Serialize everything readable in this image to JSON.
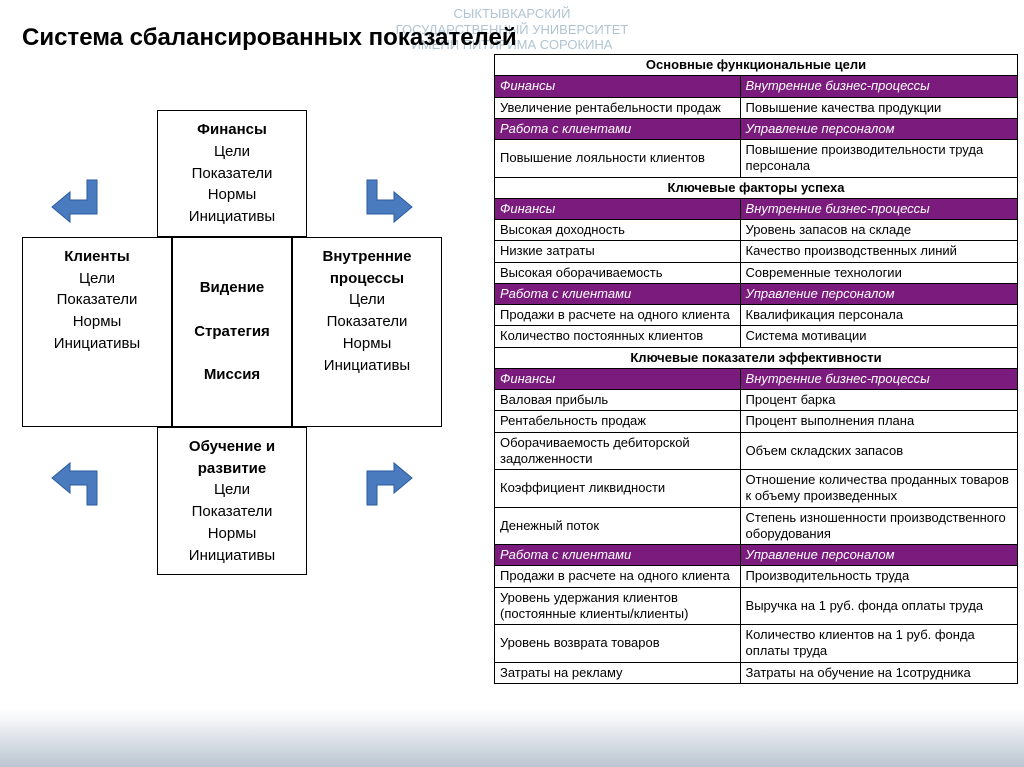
{
  "colors": {
    "purple": "#7a1b7d",
    "arrow": "#4a7bbf",
    "text": "#000000",
    "white": "#ffffff",
    "watermark": "#b0c4d4"
  },
  "watermark": {
    "line1": "СЫКТЫВКАРСКИЙ",
    "line2": "ГОСУДАРСТВЕННЫЙ УНИВЕРСИТЕТ",
    "line3": "ИМЕНИ ПИТИРИМА СОРОКИНА"
  },
  "title": "Система сбалансированных показателей",
  "diagram": {
    "top": {
      "title": "Финансы",
      "lines": [
        "Цели",
        "Показатели",
        "Нормы",
        "Инициативы"
      ]
    },
    "left": {
      "title": "Клиенты",
      "lines": [
        "Цели",
        "Показатели",
        "Нормы",
        "Инициативы"
      ]
    },
    "center": {
      "lines": [
        "Видение",
        "Стратегия",
        "Миссия"
      ]
    },
    "right": {
      "title": "Внутренние процессы",
      "lines": [
        "Цели",
        "Показатели",
        "Нормы",
        "Инициативы"
      ]
    },
    "bottom": {
      "title": "Обучение и развитие",
      "lines": [
        "Цели",
        "Показатели",
        "Нормы",
        "Инициативы"
      ]
    }
  },
  "table": {
    "sections": [
      {
        "header": "Основные функциональные цели",
        "groups": [
          {
            "subL": "Финансы",
            "subR": "Внутренние бизнес-процессы",
            "rows": [
              [
                "Увеличение рентабельности продаж",
                "Повышение качества продукции"
              ]
            ]
          },
          {
            "subL": "Работа с клиентами",
            "subR": "Управление персоналом",
            "rows": [
              [
                "Повышение лояльности клиентов",
                "Повышение производительности труда персонала"
              ]
            ]
          }
        ]
      },
      {
        "header": "Ключевые факторы успеха",
        "groups": [
          {
            "subL": "Финансы",
            "subR": "Внутренние бизнес-процессы",
            "rows": [
              [
                "Высокая доходность",
                "Уровень запасов на складе"
              ],
              [
                "Низкие затраты",
                "Качество производственных линий"
              ],
              [
                "Высокая оборачиваемость",
                "Современные технологии"
              ]
            ]
          },
          {
            "subL": "Работа с клиентами",
            "subR": "Управление персоналом",
            "rows": [
              [
                "Продажи в расчете на одного клиента",
                "Квалификация персонала"
              ],
              [
                "Количество постоянных клиентов",
                "Система мотивации"
              ]
            ]
          }
        ]
      },
      {
        "header": "Ключевые показатели эффективности",
        "groups": [
          {
            "subL": "Финансы",
            "subR": "Внутренние бизнес-процессы",
            "rows": [
              [
                "Валовая прибыль",
                "Процент барка"
              ],
              [
                "Рентабельность продаж",
                "Процент выполнения плана"
              ],
              [
                "Оборачиваемость дебиторской задолженности",
                "Объем складских запасов"
              ],
              [
                "Коэффициент ликвидности",
                "Отношение количества проданных товаров к объему произведенных"
              ],
              [
                "Денежный поток",
                "Степень изношенности производственного оборудования"
              ]
            ]
          },
          {
            "subL": "Работа с клиентами",
            "subR": "Управление персоналом",
            "rows": [
              [
                "Продажи в расчете на одного клиента",
                "Производительность труда"
              ],
              [
                "Уровень удержания клиентов (постоянные клиенты/клиенты)",
                "Выручка на 1 руб. фонда оплаты труда"
              ],
              [
                "Уровень возврата товаров",
                "Количество клиентов на 1 руб. фонда оплаты труда"
              ],
              [
                "Затраты на рекламу",
                "Затраты на обучение на 1сотрудника"
              ]
            ]
          }
        ]
      }
    ]
  }
}
